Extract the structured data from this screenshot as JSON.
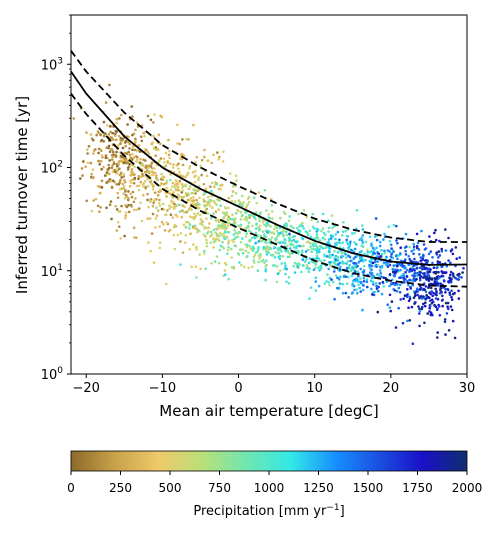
{
  "chart_data": {
    "type": "scatter",
    "xlabel": "Mean air temperature [degC]",
    "ylabel": "Inferred turnover time [yr]",
    "xlim": [
      -22,
      30
    ],
    "ylim": [
      1,
      3000
    ],
    "yscale": "log",
    "x_ticks": [
      "−20",
      "−10",
      "0",
      "10",
      "20",
      "30"
    ],
    "x_tick_values": [
      -20,
      -10,
      0,
      10,
      20,
      30
    ],
    "y_ticks": [
      {
        "base": "10",
        "exp": "0",
        "value": 1
      },
      {
        "base": "10",
        "exp": "1",
        "value": 10
      },
      {
        "base": "10",
        "exp": "2",
        "value": 100
      },
      {
        "base": "10",
        "exp": "3",
        "value": 1000
      }
    ],
    "grid": false,
    "legend": "none",
    "scatter_color_by": "Precipitation",
    "scatter_density": [
      {
        "x": -16,
        "y": 120,
        "precip": 150,
        "spread_x": 2.2,
        "spread_logy": 0.22
      },
      {
        "x": -12,
        "y": 80,
        "precip": 350,
        "spread_x": 3.0,
        "spread_logy": 0.25
      },
      {
        "x": -7,
        "y": 50,
        "precip": 450,
        "spread_x": 3.0,
        "spread_logy": 0.22
      },
      {
        "x": -2,
        "y": 30,
        "precip": 650,
        "spread_x": 3.0,
        "spread_logy": 0.18
      },
      {
        "x": 4,
        "y": 20,
        "precip": 850,
        "spread_x": 3.5,
        "spread_logy": 0.16
      },
      {
        "x": 10,
        "y": 15,
        "precip": 1000,
        "spread_x": 3.5,
        "spread_logy": 0.15
      },
      {
        "x": 16,
        "y": 12,
        "precip": 1250,
        "spread_x": 3.0,
        "spread_logy": 0.15
      },
      {
        "x": 22,
        "y": 10,
        "precip": 1500,
        "spread_x": 2.5,
        "spread_logy": 0.17
      },
      {
        "x": 25.5,
        "y": 7,
        "precip": 1800,
        "spread_x": 2.0,
        "spread_logy": 0.2
      }
    ],
    "fit_curves": [
      {
        "style": "solid",
        "points": [
          [
            -22,
            850
          ],
          [
            -20,
            520
          ],
          [
            -15,
            200
          ],
          [
            -10,
            100
          ],
          [
            -5,
            62
          ],
          [
            0,
            42
          ],
          [
            5,
            28
          ],
          [
            10,
            19.5
          ],
          [
            15,
            14.8
          ],
          [
            20,
            12.3
          ],
          [
            25,
            11.4
          ],
          [
            30,
            11.5
          ]
        ]
      },
      {
        "style": "dashed",
        "points": [
          [
            -22,
            1350
          ],
          [
            -20,
            850
          ],
          [
            -15,
            340
          ],
          [
            -10,
            165
          ],
          [
            -5,
            100
          ],
          [
            0,
            66
          ],
          [
            5,
            45
          ],
          [
            10,
            32
          ],
          [
            15,
            25
          ],
          [
            20,
            21
          ],
          [
            25,
            19
          ],
          [
            30,
            19
          ]
        ]
      },
      {
        "style": "dashed",
        "points": [
          [
            -22,
            520
          ],
          [
            -20,
            330
          ],
          [
            -15,
            130
          ],
          [
            -10,
            62
          ],
          [
            -5,
            38
          ],
          [
            0,
            26
          ],
          [
            5,
            18
          ],
          [
            10,
            12.5
          ],
          [
            15,
            9.5
          ],
          [
            20,
            8
          ],
          [
            25,
            7.2
          ],
          [
            30,
            7
          ]
        ]
      }
    ],
    "colorbar": {
      "label": "Precipitation [mm yr",
      "label_sup": "−1",
      "label_end": "]",
      "range": [
        0,
        2000
      ],
      "ticks": [
        "0",
        "250",
        "500",
        "750",
        "1000",
        "1250",
        "1500",
        "1750",
        "2000"
      ],
      "tick_values": [
        0,
        250,
        500,
        750,
        1000,
        1250,
        1500,
        1750,
        2000
      ],
      "colors": [
        "#8c6a2b",
        "#c9a24a",
        "#f0c96a",
        "#b8e07a",
        "#6fe6b0",
        "#33e8e6",
        "#1890ff",
        "#1a4fe0",
        "#1a10c8",
        "#0f2f6e"
      ]
    }
  }
}
